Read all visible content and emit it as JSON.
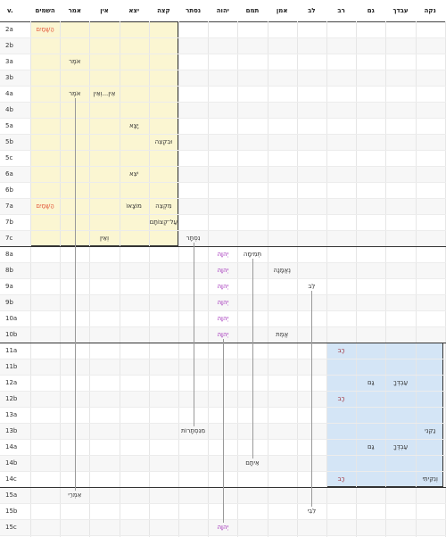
{
  "header": {
    "verse_label": "v.",
    "columns": [
      "השמים",
      "אמר",
      "אין",
      "יצא",
      "קצה",
      "נסתר",
      "יהוה",
      "תמם",
      "אמן",
      "לב",
      "רב",
      "גם",
      "עבדך",
      "נקה"
    ]
  },
  "verses": [
    "2a",
    "2b",
    "3a",
    "3b",
    "4a",
    "4b",
    "5a",
    "5b",
    "5c",
    "6a",
    "6b",
    "7a",
    "7b",
    "7c",
    "8a",
    "8b",
    "9a",
    "9b",
    "10a",
    "10b",
    "11a",
    "11b",
    "12a",
    "12b",
    "13a",
    "13b",
    "14a",
    "14b",
    "14c",
    "15a",
    "15b",
    "15c"
  ],
  "colors": {
    "red": "#e2573a",
    "purple": "#9b1fb5",
    "maroon": "#a0303a",
    "text": "#333333",
    "yellow_box": "#fbf6d2",
    "blue_box": "#d4e5f6"
  },
  "cells": [
    {
      "row": 0,
      "col": 0,
      "text": "הַשָּׁמַיִם",
      "color": "red"
    },
    {
      "row": 2,
      "col": 1,
      "text": "אֹמֶר",
      "color": "dark"
    },
    {
      "row": 4,
      "col": 1,
      "text": "אֹמֶר",
      "color": "dark"
    },
    {
      "row": 4,
      "col": 2,
      "text": "אֵין...וְאֵין",
      "color": "dark"
    },
    {
      "row": 6,
      "col": 3,
      "text": "יָצָא",
      "color": "dark"
    },
    {
      "row": 7,
      "col": 4,
      "text": "וּבִקְצֵה",
      "color": "dark"
    },
    {
      "row": 9,
      "col": 3,
      "text": "יֹצֵא",
      "color": "dark"
    },
    {
      "row": 11,
      "col": 0,
      "text": "הַשָּׁמַיִם",
      "color": "red"
    },
    {
      "row": 11,
      "col": 3,
      "text": "מוֹצָאוֹ",
      "color": "dark"
    },
    {
      "row": 11,
      "col": 4,
      "text": "מִקְצֵה",
      "color": "dark"
    },
    {
      "row": 12,
      "col": 4,
      "text": "עַל־קְצוֹתָם",
      "color": "dark"
    },
    {
      "row": 13,
      "col": 2,
      "text": "וְאֵין",
      "color": "dark"
    },
    {
      "row": 13,
      "col": 5,
      "text": "נִסְתָּר",
      "color": "dark"
    },
    {
      "row": 14,
      "col": 6,
      "text": "יְהוָה",
      "color": "purple"
    },
    {
      "row": 14,
      "col": 7,
      "text": "תְּמִימָה",
      "color": "dark"
    },
    {
      "row": 15,
      "col": 6,
      "text": "יְהוָה",
      "color": "purple"
    },
    {
      "row": 15,
      "col": 8,
      "text": "נֶאֱמָנָה",
      "color": "dark"
    },
    {
      "row": 16,
      "col": 6,
      "text": "יְהוָה",
      "color": "purple"
    },
    {
      "row": 16,
      "col": 9,
      "text": "לֵב",
      "color": "dark"
    },
    {
      "row": 17,
      "col": 6,
      "text": "יְהוָה",
      "color": "purple"
    },
    {
      "row": 18,
      "col": 6,
      "text": "יְהוָה",
      "color": "purple"
    },
    {
      "row": 19,
      "col": 6,
      "text": "יְהוָה",
      "color": "purple"
    },
    {
      "row": 19,
      "col": 8,
      "text": "אֱמֶת",
      "color": "dark"
    },
    {
      "row": 20,
      "col": 10,
      "text": "רָב",
      "color": "maroon"
    },
    {
      "row": 22,
      "col": 11,
      "text": "גַּם",
      "color": "dark"
    },
    {
      "row": 22,
      "col": 12,
      "text": "עַבְדְּךָ",
      "color": "dark"
    },
    {
      "row": 23,
      "col": 10,
      "text": "רָב",
      "color": "maroon"
    },
    {
      "row": 25,
      "col": 5,
      "text": "מִנִּסְתָּרוֹת",
      "color": "dark"
    },
    {
      "row": 25,
      "col": 13,
      "text": "נַקֵּנִי",
      "color": "dark"
    },
    {
      "row": 26,
      "col": 11,
      "text": "גַּם",
      "color": "dark"
    },
    {
      "row": 26,
      "col": 12,
      "text": "עַבְדֶּךָ",
      "color": "dark"
    },
    {
      "row": 27,
      "col": 7,
      "text": "אֵיתָם",
      "color": "dark"
    },
    {
      "row": 28,
      "col": 10,
      "text": "רָב",
      "color": "maroon"
    },
    {
      "row": 28,
      "col": 13,
      "text": "וְנִקֵּיתִי",
      "color": "dark"
    },
    {
      "row": 29,
      "col": 1,
      "text": "אִמְרֵי",
      "color": "dark"
    },
    {
      "row": 30,
      "col": 9,
      "text": "לִבִּי",
      "color": "dark"
    },
    {
      "row": 31,
      "col": 6,
      "text": "יְהוָה",
      "color": "purple"
    }
  ]
}
